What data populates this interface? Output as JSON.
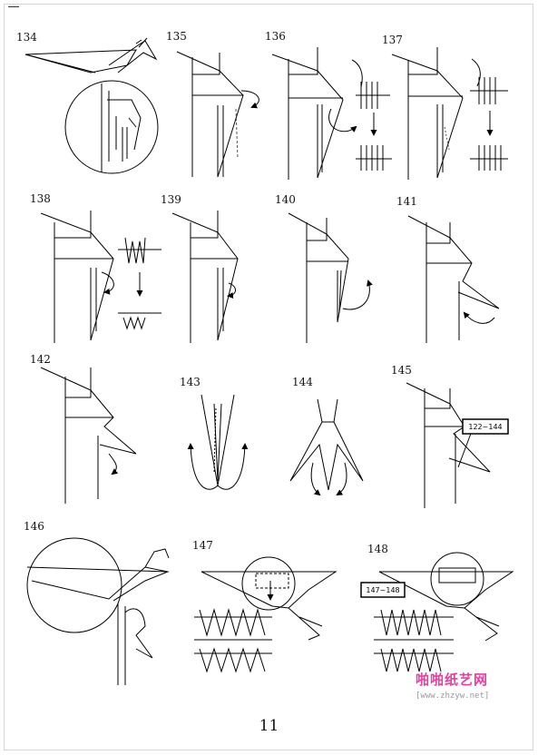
{
  "steps": [
    "134",
    "135",
    "136",
    "137",
    "138",
    "139",
    "140",
    "141",
    "142",
    "143",
    "144",
    "145",
    "146",
    "147",
    "148"
  ],
  "refs": {
    "step145": "122~144",
    "step147": "147~148"
  },
  "page_number": "11",
  "watermark": {
    "cn": "啪啪纸艺网",
    "url": "[www.zhzyw.net]"
  }
}
